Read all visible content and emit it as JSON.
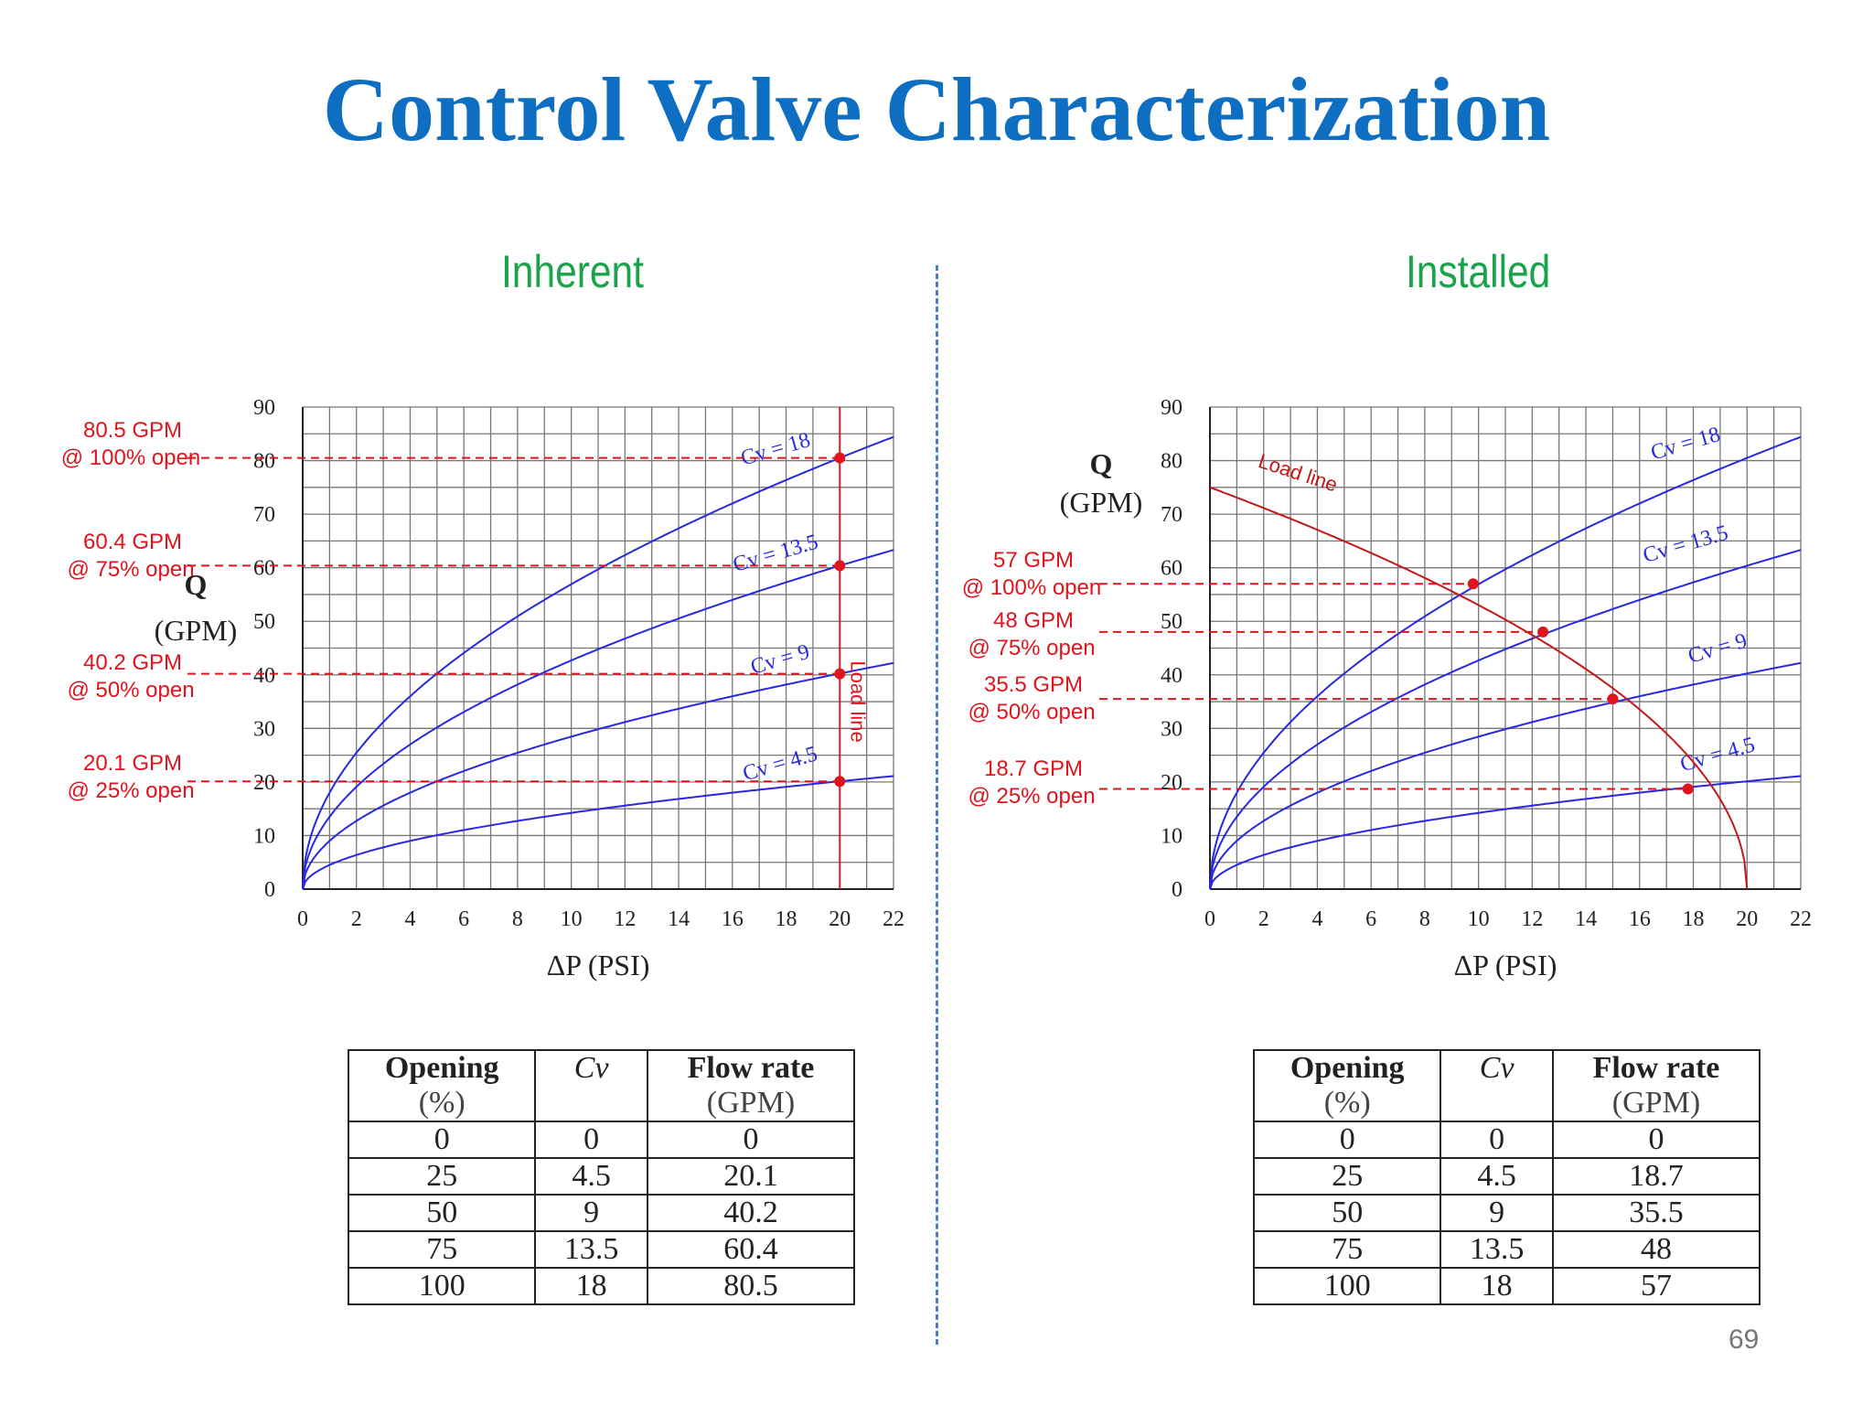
{
  "title": "Control Valve Characterization",
  "page_number": "69",
  "colors": {
    "title": "#0e6fc2",
    "subtitle": "#1aa34a",
    "curve": "#2828e0",
    "annot": "#e0141e",
    "divider": "#4a7ec5"
  },
  "chart_data": [
    {
      "type": "line",
      "title": "Inherent",
      "xlabel": "ΔP (PSI)",
      "ylabel": "Q (GPM)",
      "xlim": [
        0,
        22
      ],
      "ylim": [
        0,
        90
      ],
      "x_ticks": [
        0,
        2,
        4,
        6,
        8,
        10,
        12,
        14,
        16,
        18,
        20,
        22
      ],
      "y_ticks": [
        0,
        10,
        20,
        30,
        40,
        50,
        60,
        70,
        80,
        90
      ],
      "grid": true,
      "series": [
        {
          "name": "Cv = 18",
          "cv": 18,
          "formula": "Q = Cv * sqrt(dP)"
        },
        {
          "name": "Cv = 13.5",
          "cv": 13.5
        },
        {
          "name": "Cv = 9",
          "cv": 9
        },
        {
          "name": "Cv = 4.5",
          "cv": 4.5
        }
      ],
      "load_line": {
        "label": "Load line",
        "x": 20
      },
      "operating_points": [
        {
          "x": 20,
          "y": 80.5,
          "label_line1": "80.5 GPM",
          "label_line2": "@ 100% open"
        },
        {
          "x": 20,
          "y": 60.4,
          "label_line1": "60.4 GPM",
          "label_line2": "@ 75% open"
        },
        {
          "x": 20,
          "y": 40.2,
          "label_line1": "40.2 GPM",
          "label_line2": "@ 50% open"
        },
        {
          "x": 20,
          "y": 20.1,
          "label_line1": "20.1 GPM",
          "label_line2": "@ 25% open"
        }
      ]
    },
    {
      "type": "line",
      "title": "Installed",
      "xlabel": "ΔP (PSI)",
      "ylabel": "Q (GPM)",
      "xlim": [
        0,
        22
      ],
      "ylim": [
        0,
        90
      ],
      "x_ticks": [
        0,
        2,
        4,
        6,
        8,
        10,
        12,
        14,
        16,
        18,
        20,
        22
      ],
      "y_ticks": [
        0,
        10,
        20,
        30,
        40,
        50,
        60,
        70,
        80,
        90
      ],
      "grid": true,
      "series": [
        {
          "name": "Cv = 18",
          "cv": 18
        },
        {
          "name": "Cv = 13.5",
          "cv": 13.5
        },
        {
          "name": "Cv = 9",
          "cv": 9
        },
        {
          "name": "Cv = 4.5",
          "cv": 4.5
        }
      ],
      "load_line": {
        "label": "Load line",
        "q_at_zero": 75,
        "dp_at_zero_flow": 20
      },
      "operating_points": [
        {
          "x": 9.8,
          "y": 57,
          "label_line1": "57 GPM",
          "label_line2": "@ 100% open"
        },
        {
          "x": 12.4,
          "y": 48,
          "label_line1": "48 GPM",
          "label_line2": "@ 75% open"
        },
        {
          "x": 15.0,
          "y": 35.5,
          "label_line1": "35.5 GPM",
          "label_line2": "@ 50% open"
        },
        {
          "x": 17.8,
          "y": 18.7,
          "label_line1": "18.7 GPM",
          "label_line2": "@ 25% open"
        }
      ]
    }
  ],
  "tables": [
    {
      "headers": [
        {
          "main": "Opening",
          "unit": "(%)"
        },
        {
          "main": "Cv",
          "unit": ""
        },
        {
          "main": "Flow rate",
          "unit": "(GPM)"
        }
      ],
      "rows": [
        [
          "0",
          "0",
          "0"
        ],
        [
          "25",
          "4.5",
          "20.1"
        ],
        [
          "50",
          "9",
          "40.2"
        ],
        [
          "75",
          "13.5",
          "60.4"
        ],
        [
          "100",
          "18",
          "80.5"
        ]
      ]
    },
    {
      "headers": [
        {
          "main": "Opening",
          "unit": "(%)"
        },
        {
          "main": "Cv",
          "unit": ""
        },
        {
          "main": "Flow rate",
          "unit": "(GPM)"
        }
      ],
      "rows": [
        [
          "0",
          "0",
          "0"
        ],
        [
          "25",
          "4.5",
          "18.7"
        ],
        [
          "50",
          "9",
          "35.5"
        ],
        [
          "75",
          "13.5",
          "48"
        ],
        [
          "100",
          "18",
          "57"
        ]
      ]
    }
  ]
}
